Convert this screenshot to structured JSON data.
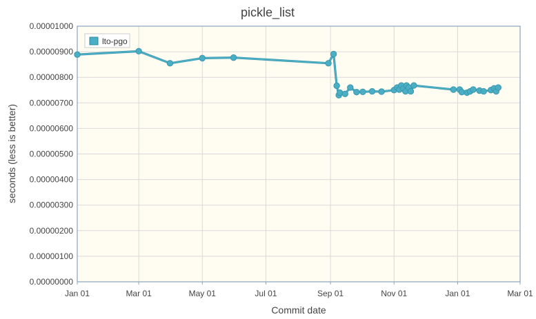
{
  "chart_data": {
    "type": "line",
    "title": "pickle_list",
    "xlabel": "Commit date",
    "ylabel": "seconds (less is better)",
    "xlim": [
      "2019-01-01",
      "2020-03-01"
    ],
    "ylim": [
      0,
      1e-05
    ],
    "grid": true,
    "legend_position": "top-left",
    "x_ticks": [
      {
        "date": "2019-01-01",
        "label": "Jan 01"
      },
      {
        "date": "2019-03-01",
        "label": "Mar 01"
      },
      {
        "date": "2019-05-01",
        "label": "May 01"
      },
      {
        "date": "2019-07-01",
        "label": "Jul 01"
      },
      {
        "date": "2019-09-01",
        "label": "Sep 01"
      },
      {
        "date": "2019-11-01",
        "label": "Nov 01"
      },
      {
        "date": "2020-01-01",
        "label": "Jan 01"
      },
      {
        "date": "2020-03-01",
        "label": "Mar 01"
      }
    ],
    "y_ticks": [
      {
        "value": 0,
        "label": "0.00000000"
      },
      {
        "value": 1e-06,
        "label": "0.00000100"
      },
      {
        "value": 2e-06,
        "label": "0.00000200"
      },
      {
        "value": 3e-06,
        "label": "0.00000300"
      },
      {
        "value": 4e-06,
        "label": "0.00000400"
      },
      {
        "value": 5e-06,
        "label": "0.00000500"
      },
      {
        "value": 6e-06,
        "label": "0.00000600"
      },
      {
        "value": 7e-06,
        "label": "0.00000700"
      },
      {
        "value": 8e-06,
        "label": "0.00000800"
      },
      {
        "value": 9e-06,
        "label": "0.00000900"
      },
      {
        "value": 1e-05,
        "label": "0.00001000"
      }
    ],
    "series": [
      {
        "name": "lto-pgo",
        "color": "#4aaec4",
        "points": [
          {
            "x": "2019-01-01",
            "y": 8.89e-06
          },
          {
            "x": "2019-03-01",
            "y": 9.02e-06
          },
          {
            "x": "2019-03-31",
            "y": 8.55e-06
          },
          {
            "x": "2019-05-01",
            "y": 8.75e-06
          },
          {
            "x": "2019-05-31",
            "y": 8.77e-06
          },
          {
            "x": "2019-08-30",
            "y": 8.55e-06
          },
          {
            "x": "2019-09-04",
            "y": 8.91e-06
          },
          {
            "x": "2019-09-07",
            "y": 7.67e-06
          },
          {
            "x": "2019-09-09",
            "y": 7.3e-06
          },
          {
            "x": "2019-09-10",
            "y": 7.4e-06
          },
          {
            "x": "2019-09-15",
            "y": 7.35e-06
          },
          {
            "x": "2019-09-20",
            "y": 7.6e-06
          },
          {
            "x": "2019-09-26",
            "y": 7.42e-06
          },
          {
            "x": "2019-10-02",
            "y": 7.43e-06
          },
          {
            "x": "2019-10-11",
            "y": 7.45e-06
          },
          {
            "x": "2019-10-20",
            "y": 7.44e-06
          },
          {
            "x": "2019-11-01",
            "y": 7.5e-06
          },
          {
            "x": "2019-11-04",
            "y": 7.6e-06
          },
          {
            "x": "2019-11-06",
            "y": 7.52e-06
          },
          {
            "x": "2019-11-08",
            "y": 7.68e-06
          },
          {
            "x": "2019-11-10",
            "y": 7.55e-06
          },
          {
            "x": "2019-11-12",
            "y": 7.45e-06
          },
          {
            "x": "2019-11-13",
            "y": 7.68e-06
          },
          {
            "x": "2019-11-15",
            "y": 7.6e-06
          },
          {
            "x": "2019-11-17",
            "y": 7.45e-06
          },
          {
            "x": "2019-11-20",
            "y": 7.68e-06
          },
          {
            "x": "2019-12-28",
            "y": 7.52e-06
          },
          {
            "x": "2020-01-03",
            "y": 7.52e-06
          },
          {
            "x": "2020-01-05",
            "y": 7.42e-06
          },
          {
            "x": "2020-01-10",
            "y": 7.4e-06
          },
          {
            "x": "2020-01-13",
            "y": 7.45e-06
          },
          {
            "x": "2020-01-16",
            "y": 7.52e-06
          },
          {
            "x": "2020-01-22",
            "y": 7.48e-06
          },
          {
            "x": "2020-01-26",
            "y": 7.45e-06
          },
          {
            "x": "2020-02-02",
            "y": 7.5e-06
          },
          {
            "x": "2020-02-05",
            "y": 7.57e-06
          },
          {
            "x": "2020-02-07",
            "y": 7.45e-06
          },
          {
            "x": "2020-02-09",
            "y": 7.6e-06
          }
        ]
      }
    ]
  }
}
